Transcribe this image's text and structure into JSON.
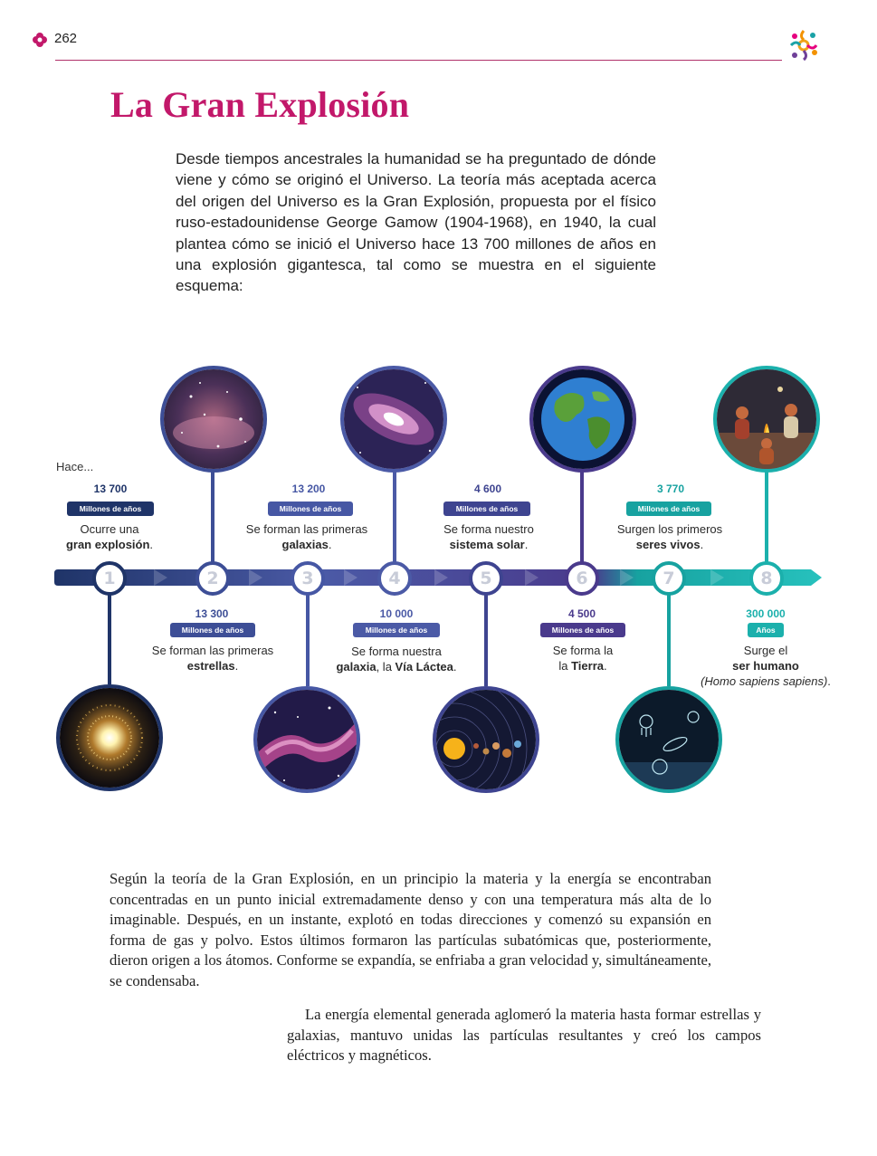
{
  "header": {
    "page_number": "262"
  },
  "title": "La Gran Explosión",
  "intro": "Desde tiempos ancestrales la humanidad se ha preguntado de dónde viene y cómo se originó el Universo. La teoría más aceptada acerca del origen del Universo es la Gran Explosión, propuesta por el físico ruso-estadounidense George Gamow (1904-1968), en 1940, la cual plantea cómo se inició el Universo hace 13 700 millones de años en una explosión gigantesca, tal como se muestra en el siguiente esquema:",
  "timeline": {
    "prefix": "Hace...",
    "events": [
      {
        "number": "1",
        "amount": "13 700",
        "unit": "Millones de años",
        "text_plain": "Ocurre una",
        "text_bold": "gran explosión",
        "text_end": ".",
        "image": "big-bang-star-icon"
      },
      {
        "number": "2",
        "amount": "13 300",
        "unit": "Millones de años",
        "text_plain": "Se forman las primeras",
        "text_bold": "estrellas",
        "text_end": ".",
        "image": "nebula-stars-icon"
      },
      {
        "number": "3",
        "amount": "13 200",
        "unit": "Millones de años",
        "text_plain": "Se forman las primeras",
        "text_bold": "galaxias",
        "text_end": ".",
        "image": "galaxies-icon"
      },
      {
        "number": "4",
        "amount": "10 000",
        "unit": "Millones de años",
        "text_plain": "Se forma nuestra",
        "text_bold": "galaxia",
        "text_mid": ", la ",
        "text_bold2": "Vía Láctea",
        "text_end": ".",
        "image": "milky-way-icon"
      },
      {
        "number": "5",
        "amount": "4 600",
        "unit": "Millones de años",
        "text_plain": "Se forma nuestro",
        "text_bold": "sistema solar",
        "text_end": ".",
        "image": "solar-system-icon"
      },
      {
        "number": "6",
        "amount": "4 500",
        "unit": "Millones de años",
        "text_plain": "Se forma la",
        "text_bold": "Tierra",
        "text_end": ".",
        "image": "earth-icon"
      },
      {
        "number": "7",
        "amount": "3 770",
        "unit": "Millones de años",
        "text_plain": "Surgen los primeros",
        "text_bold": "seres vivos",
        "text_end": ".",
        "image": "microorganisms-icon"
      },
      {
        "number": "8",
        "amount": "300 000",
        "unit": "Años",
        "text_plain": "Surge el",
        "text_bold": "ser humano",
        "text_italic": "(Homo sapiens sapiens)",
        "text_end": ".",
        "image": "early-humans-icon"
      }
    ]
  },
  "paragraph_1": "Según la teoría de la Gran Explosión, en un principio la materia y la energía se encontraban concentradas en un punto inicial extremadamente denso y con una temperatura más alta de lo imaginable. Después, en un instante, explotó en todas direcciones y comenzó su expansión en forma de gas y polvo. Estos últimos formaron las partículas subatómicas que, posteriormente, dieron origen a los átomos. Conforme se expandía, se enfriaba a gran velocidad y, simultáneamente, se condensaba.",
  "paragraph_2": "La energía elemental generada aglomeró la materia hasta formar estrellas y galaxias, mantuvo unidas las partículas resultantes y creó los campos eléctricos y magnéticos.",
  "colors": {
    "title": "#c2186a",
    "rule": "#b0306a",
    "navy": "#1f3468",
    "indigo": "#4b4f9e",
    "violet": "#4a3a8c",
    "teal": "#17a2a0"
  }
}
